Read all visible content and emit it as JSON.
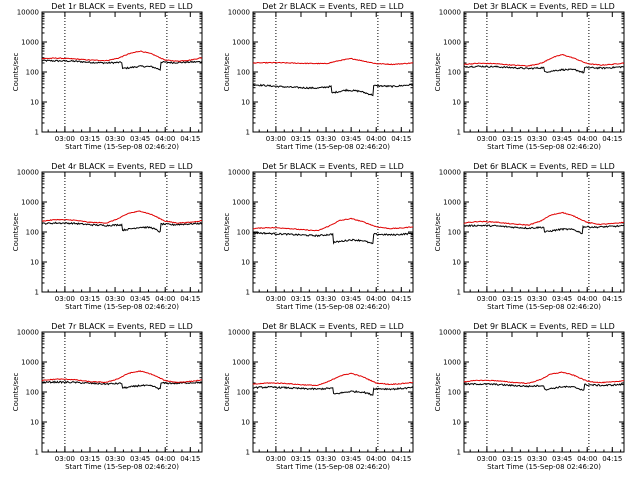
{
  "panel_grid": {
    "columns": 3,
    "rows": 3
  },
  "colors": {
    "events": "#000000",
    "lld": "#e00000",
    "frame": "#000000"
  },
  "chart_data": [
    {
      "type": "line",
      "title": "Det 1r BLACK = Events, RED = LLD",
      "xlabel": "Start Time (15-Sep-08 02:46:20)",
      "ylabel": "Counts/sec",
      "yscale": "log",
      "ylim": [
        1,
        10000
      ],
      "xlim_min": [
        166.3,
        262
      ],
      "x_ticks": [
        "03:00",
        "03:15",
        "03:30",
        "03:45",
        "04:00",
        "04:15"
      ],
      "x_tick_min": [
        180,
        195,
        210,
        225,
        240,
        255
      ],
      "y_ticks": [
        "1",
        "10",
        "100",
        "1000",
        "10000"
      ],
      "vlines_min": [
        180,
        241
      ],
      "grid": false,
      "legend": "none",
      "series": [
        {
          "role": "events",
          "x": [
            166,
            175,
            185,
            195,
            205,
            214,
            214.5,
            225,
            232,
            237,
            237.5,
            245,
            262
          ],
          "y": [
            240,
            235,
            230,
            210,
            200,
            210,
            130,
            155,
            150,
            120,
            215,
            205,
            220
          ]
        },
        {
          "role": "lld",
          "x": [
            166,
            175,
            185,
            195,
            205,
            212,
            218,
            225,
            232,
            240,
            247,
            255,
            262
          ],
          "y": [
            280,
            290,
            275,
            250,
            240,
            290,
            400,
            500,
            400,
            250,
            230,
            250,
            300
          ]
        }
      ]
    },
    {
      "type": "line",
      "title": "Det 2r BLACK = Events, RED = LLD",
      "xlabel": "Start Time (15-Sep-08 02:46:20)",
      "ylabel": "Counts/sec",
      "yscale": "log",
      "ylim": [
        1,
        10000
      ],
      "xlim_min": [
        166.3,
        262
      ],
      "x_ticks": [
        "03:00",
        "03:15",
        "03:30",
        "03:45",
        "04:00",
        "04:15"
      ],
      "x_tick_min": [
        180,
        195,
        210,
        225,
        240,
        255
      ],
      "y_ticks": [
        "1",
        "10",
        "100",
        "1000",
        "10000"
      ],
      "vlines_min": [
        180,
        241
      ],
      "grid": false,
      "legend": "none",
      "series": [
        {
          "role": "events",
          "x": [
            166,
            175,
            185,
            195,
            205,
            213,
            213.5,
            222,
            230,
            238,
            238.5,
            250,
            262
          ],
          "y": [
            38,
            35,
            32,
            30,
            29,
            33,
            20,
            25,
            23,
            17,
            35,
            33,
            38
          ]
        },
        {
          "role": "lld",
          "x": [
            166,
            180,
            195,
            210,
            218,
            225,
            232,
            240,
            250,
            262
          ],
          "y": [
            200,
            205,
            195,
            190,
            240,
            280,
            235,
            190,
            180,
            200
          ]
        }
      ]
    },
    {
      "type": "line",
      "title": "Det 3r BLACK = Events, RED = LLD",
      "xlabel": "Start Time (15-Sep-08 02:46:20)",
      "ylabel": "Counts/sec",
      "yscale": "log",
      "ylim": [
        1,
        10000
      ],
      "xlim_min": [
        166.3,
        262
      ],
      "x_ticks": [
        "03:00",
        "03:15",
        "03:30",
        "03:45",
        "04:00",
        "04:15"
      ],
      "x_tick_min": [
        180,
        195,
        210,
        225,
        240,
        255
      ],
      "y_ticks": [
        "1",
        "10",
        "100",
        "1000",
        "10000"
      ],
      "vlines_min": [
        180,
        241
      ],
      "grid": false,
      "legend": "none",
      "series": [
        {
          "role": "events",
          "x": [
            166,
            175,
            185,
            195,
            205,
            214,
            214.5,
            225,
            233,
            238,
            238.5,
            250,
            262
          ],
          "y": [
            150,
            155,
            150,
            140,
            130,
            140,
            100,
            120,
            118,
            95,
            140,
            135,
            150
          ]
        },
        {
          "role": "lld",
          "x": [
            166,
            175,
            185,
            195,
            205,
            213,
            219,
            225,
            232,
            240,
            248,
            255,
            262
          ],
          "y": [
            180,
            195,
            190,
            170,
            160,
            200,
            300,
            380,
            290,
            190,
            170,
            180,
            200
          ]
        }
      ]
    },
    {
      "type": "line",
      "title": "Det 4r BLACK = Events, RED = LLD",
      "xlabel": "Start Time (15-Sep-08 02:46:20)",
      "ylabel": "Counts/sec",
      "yscale": "log",
      "ylim": [
        1,
        10000
      ],
      "xlim_min": [
        166.3,
        262
      ],
      "x_ticks": [
        "03:00",
        "03:15",
        "03:30",
        "03:45",
        "04:00",
        "04:15"
      ],
      "x_tick_min": [
        180,
        195,
        210,
        225,
        240,
        255
      ],
      "y_ticks": [
        "1",
        "10",
        "100",
        "1000",
        "10000"
      ],
      "vlines_min": [
        180,
        241
      ],
      "grid": false,
      "legend": "none",
      "series": [
        {
          "role": "events",
          "x": [
            166,
            175,
            185,
            195,
            205,
            214,
            214.5,
            225,
            232,
            237,
            237.5,
            245,
            262
          ],
          "y": [
            190,
            200,
            195,
            175,
            165,
            175,
            115,
            145,
            140,
            100,
            185,
            175,
            195
          ]
        },
        {
          "role": "lld",
          "x": [
            166,
            175,
            185,
            195,
            205,
            212,
            218,
            225,
            232,
            240,
            247,
            255,
            262
          ],
          "y": [
            230,
            260,
            250,
            210,
            200,
            280,
            420,
            500,
            380,
            230,
            200,
            210,
            240
          ]
        }
      ]
    },
    {
      "type": "line",
      "title": "Det 5r BLACK = Events, RED = LLD",
      "xlabel": "Start Time (15-Sep-08 02:46:20)",
      "ylabel": "Counts/sec",
      "yscale": "log",
      "ylim": [
        1,
        10000
      ],
      "xlim_min": [
        166.3,
        262
      ],
      "x_ticks": [
        "03:00",
        "03:15",
        "03:30",
        "03:45",
        "04:00",
        "04:15"
      ],
      "x_tick_min": [
        180,
        195,
        210,
        225,
        240,
        255
      ],
      "y_ticks": [
        "1",
        "10",
        "100",
        "1000",
        "10000"
      ],
      "vlines_min": [
        180,
        241
      ],
      "grid": false,
      "legend": "none",
      "series": [
        {
          "role": "events",
          "x": [
            166,
            175,
            185,
            195,
            205,
            214,
            214.5,
            225,
            232,
            238,
            238.5,
            250,
            262
          ],
          "y": [
            95,
            90,
            85,
            80,
            75,
            85,
            45,
            55,
            52,
            40,
            85,
            80,
            90
          ]
        },
        {
          "role": "lld",
          "x": [
            166,
            175,
            185,
            195,
            205,
            212,
            218,
            225,
            232,
            240,
            248,
            255,
            262
          ],
          "y": [
            130,
            140,
            135,
            120,
            110,
            160,
            240,
            280,
            220,
            150,
            130,
            135,
            150
          ]
        }
      ]
    },
    {
      "type": "line",
      "title": "Det 6r BLACK = Events, RED = LLD",
      "xlabel": "Start Time (15-Sep-08 02:46:20)",
      "ylabel": "Counts/sec",
      "yscale": "log",
      "ylim": [
        1,
        10000
      ],
      "xlim_min": [
        166.3,
        262
      ],
      "x_ticks": [
        "03:00",
        "03:15",
        "03:30",
        "03:45",
        "04:00",
        "04:15"
      ],
      "x_tick_min": [
        180,
        195,
        210,
        225,
        240,
        255
      ],
      "y_ticks": [
        "1",
        "10",
        "100",
        "1000",
        "10000"
      ],
      "vlines_min": [
        180,
        241
      ],
      "grid": false,
      "legend": "none",
      "series": [
        {
          "role": "events",
          "x": [
            166,
            175,
            185,
            195,
            205,
            214,
            214.5,
            225,
            232,
            237,
            237.5,
            245,
            262
          ],
          "y": [
            160,
            165,
            160,
            145,
            135,
            145,
            100,
            125,
            120,
            90,
            150,
            145,
            160
          ]
        },
        {
          "role": "lld",
          "x": [
            166,
            175,
            185,
            195,
            205,
            212,
            218,
            225,
            232,
            240,
            247,
            255,
            262
          ],
          "y": [
            200,
            225,
            215,
            185,
            170,
            230,
            360,
            450,
            340,
            210,
            180,
            190,
            210
          ]
        }
      ]
    },
    {
      "type": "line",
      "title": "Det 7r BLACK = Events, RED = LLD",
      "xlabel": "Start Time (15-Sep-08 02:46:20)",
      "ylabel": "Counts/sec",
      "yscale": "log",
      "ylim": [
        1,
        10000
      ],
      "xlim_min": [
        166.3,
        262
      ],
      "x_ticks": [
        "03:00",
        "03:15",
        "03:30",
        "03:45",
        "04:00",
        "04:15"
      ],
      "x_tick_min": [
        180,
        195,
        210,
        225,
        240,
        255
      ],
      "y_ticks": [
        "1",
        "10",
        "100",
        "1000",
        "10000"
      ],
      "vlines_min": [
        180,
        241
      ],
      "grid": false,
      "legend": "none",
      "series": [
        {
          "role": "events",
          "x": [
            166,
            175,
            185,
            195,
            205,
            214,
            214.5,
            225,
            232,
            237,
            237.5,
            245,
            262
          ],
          "y": [
            210,
            215,
            210,
            195,
            185,
            195,
            135,
            165,
            160,
            125,
            200,
            195,
            210
          ]
        },
        {
          "role": "lld",
          "x": [
            166,
            175,
            185,
            195,
            205,
            212,
            218,
            225,
            232,
            240,
            247,
            255,
            262
          ],
          "y": [
            240,
            270,
            260,
            220,
            210,
            280,
            420,
            500,
            390,
            240,
            210,
            225,
            250
          ]
        }
      ]
    },
    {
      "type": "line",
      "title": "Det 8r BLACK = Events, RED = LLD",
      "xlabel": "Start Time (15-Sep-08 02:46:20)",
      "ylabel": "Counts/sec",
      "yscale": "log",
      "ylim": [
        1,
        10000
      ],
      "xlim_min": [
        166.3,
        262
      ],
      "x_ticks": [
        "03:00",
        "03:15",
        "03:30",
        "03:45",
        "04:00",
        "04:15"
      ],
      "x_tick_min": [
        180,
        195,
        210,
        225,
        240,
        255
      ],
      "y_ticks": [
        "1",
        "10",
        "100",
        "1000",
        "10000"
      ],
      "vlines_min": [
        180,
        241
      ],
      "grid": false,
      "legend": "none",
      "series": [
        {
          "role": "events",
          "x": [
            166,
            175,
            185,
            195,
            205,
            214,
            214.5,
            225,
            232,
            238,
            238.5,
            250,
            262
          ],
          "y": [
            140,
            145,
            140,
            130,
            125,
            135,
            85,
            105,
            100,
            80,
            130,
            125,
            140
          ]
        },
        {
          "role": "lld",
          "x": [
            166,
            175,
            185,
            195,
            205,
            212,
            218,
            225,
            232,
            240,
            248,
            255,
            262
          ],
          "y": [
            180,
            200,
            195,
            175,
            165,
            230,
            340,
            420,
            320,
            200,
            180,
            190,
            210
          ]
        }
      ]
    },
    {
      "type": "line",
      "title": "Det 9r BLACK = Events, RED = LLD",
      "xlabel": "Start Time (15-Sep-08 02:46:20)",
      "ylabel": "Counts/sec",
      "yscale": "log",
      "ylim": [
        1,
        10000
      ],
      "xlim_min": [
        166.3,
        262
      ],
      "x_ticks": [
        "03:00",
        "03:15",
        "03:30",
        "03:45",
        "04:00",
        "04:15"
      ],
      "x_tick_min": [
        180,
        195,
        210,
        225,
        240,
        255
      ],
      "y_ticks": [
        "1",
        "10",
        "100",
        "1000",
        "10000"
      ],
      "vlines_min": [
        180,
        241
      ],
      "grid": false,
      "legend": "none",
      "series": [
        {
          "role": "events",
          "x": [
            166,
            175,
            185,
            195,
            205,
            214,
            214.5,
            225,
            232,
            238,
            238.5,
            250,
            262
          ],
          "y": [
            180,
            185,
            180,
            165,
            155,
            165,
            120,
            150,
            145,
            115,
            175,
            165,
            180
          ]
        },
        {
          "role": "lld",
          "x": [
            166,
            175,
            185,
            195,
            205,
            212,
            218,
            225,
            232,
            240,
            248,
            255,
            262
          ],
          "y": [
            220,
            245,
            240,
            210,
            195,
            260,
            390,
            460,
            360,
            230,
            205,
            215,
            240
          ]
        }
      ]
    }
  ]
}
